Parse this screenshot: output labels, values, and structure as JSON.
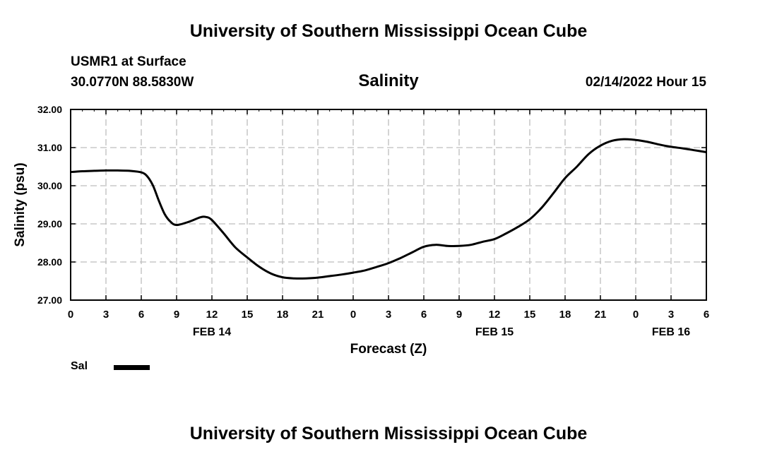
{
  "header": {
    "title": "University of Southern Mississippi Ocean Cube",
    "station": "USMR1 at Surface",
    "coords": "30.0770N  88.5830W",
    "variable": "Salinity",
    "run": "02/14/2022 Hour 15",
    "footer_title": "University of Southern Mississippi Ocean Cube"
  },
  "chart_data": {
    "type": "line",
    "title": "Salinity",
    "xlabel": "Forecast (Z)",
    "ylabel": "Salinity (psu)",
    "ylim": [
      27.0,
      32.0
    ],
    "yticks": [
      "27.00",
      "28.00",
      "29.00",
      "30.00",
      "31.00",
      "32.00"
    ],
    "xlim": [
      0,
      54
    ],
    "xticks": [
      "0",
      "3",
      "6",
      "9",
      "12",
      "15",
      "18",
      "21",
      "0",
      "3",
      "6",
      "9",
      "12",
      "15",
      "18",
      "21",
      "0",
      "3",
      "6"
    ],
    "date_labels": [
      {
        "text": "FEB 14",
        "at_hour": 12
      },
      {
        "text": "FEB 15",
        "at_hour": 36
      },
      {
        "text": "FEB 16",
        "at_hour": 51
      }
    ],
    "grid": true,
    "legend": {
      "label": "Sal",
      "placement": "bottom-left"
    },
    "series": [
      {
        "name": "Sal",
        "color": "#000000",
        "x": [
          0,
          1,
          2,
          3,
          4,
          5,
          6,
          6.5,
          7,
          7.5,
          8,
          8.5,
          9,
          10,
          11,
          11.5,
          12,
          13,
          14,
          15,
          16,
          17,
          18,
          19,
          20,
          21,
          22,
          23,
          24,
          25,
          26,
          27,
          28,
          29,
          30,
          31,
          32,
          33,
          34,
          35,
          36,
          37,
          38,
          39,
          40,
          41,
          42,
          43,
          44,
          45,
          46,
          47,
          48,
          49,
          50,
          51,
          52,
          53,
          54
        ],
        "values": [
          30.36,
          30.38,
          30.39,
          30.4,
          30.4,
          30.39,
          30.35,
          30.25,
          30.0,
          29.6,
          29.25,
          29.05,
          28.97,
          29.05,
          29.17,
          29.18,
          29.1,
          28.75,
          28.38,
          28.12,
          27.88,
          27.7,
          27.6,
          27.57,
          27.57,
          27.59,
          27.63,
          27.67,
          27.72,
          27.78,
          27.87,
          27.97,
          28.1,
          28.25,
          28.4,
          28.45,
          28.42,
          28.42,
          28.45,
          28.53,
          28.6,
          28.75,
          28.92,
          29.12,
          29.42,
          29.8,
          30.2,
          30.5,
          30.83,
          31.05,
          31.18,
          31.22,
          31.2,
          31.15,
          31.08,
          31.02,
          30.98,
          30.93,
          30.88
        ]
      }
    ]
  }
}
